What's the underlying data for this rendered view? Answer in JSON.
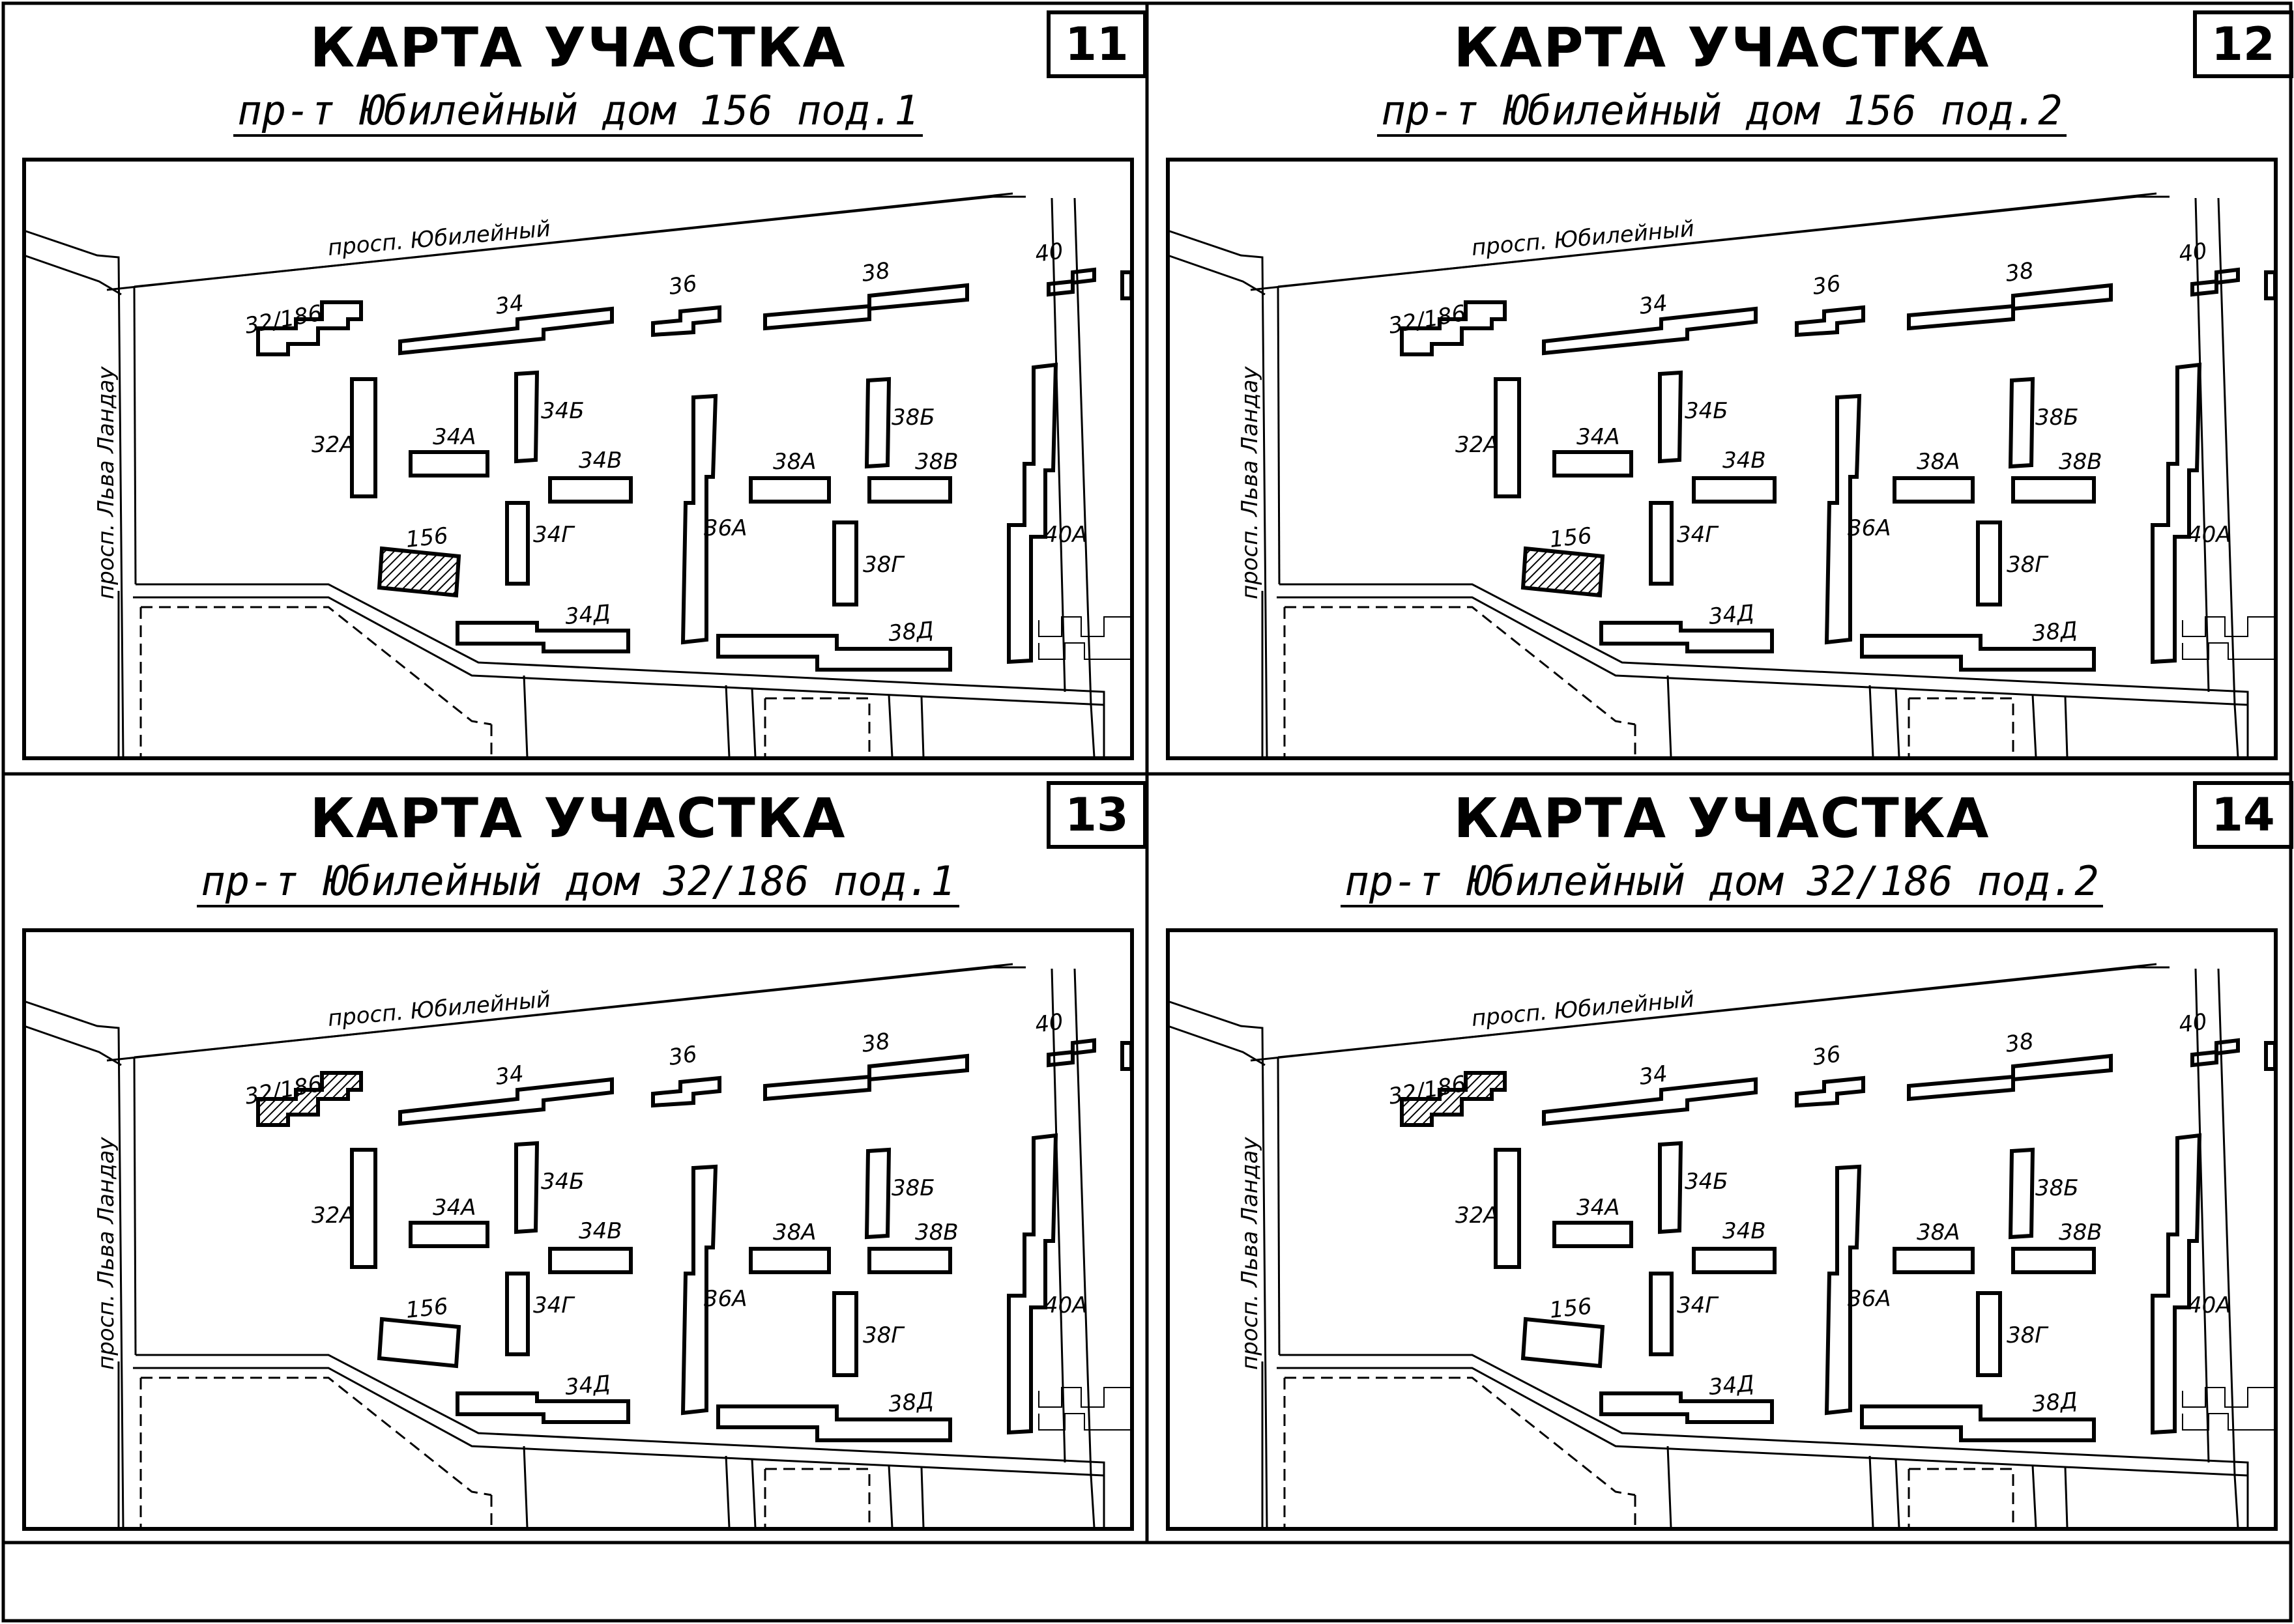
{
  "colors": {
    "ink": "#000000",
    "background": "#ffffff",
    "hatch": "#000000"
  },
  "streets": {
    "jubilee_avenue": "просп. Юбилейный",
    "landau_avenue": "просп. Льва Ландау"
  },
  "building_labels": {
    "b32_186": "32/186",
    "b32a": "32А",
    "b34": "34",
    "b34a": "34А",
    "b34b": "34Б",
    "b34v": "34В",
    "b34g": "34Г",
    "b34d": "34Д",
    "b36": "36",
    "b36a": "36А",
    "b38": "38",
    "b38a": "38А",
    "b38b": "38Б",
    "b38v": "38В",
    "b38g": "38Г",
    "b38d": "38Д",
    "b40": "40",
    "b40a": "40А",
    "b156": "156"
  },
  "panels": [
    {
      "number": "11",
      "title": "КАРТА УЧАСТКА",
      "subtitle": "пр-т Юбилейный дом 156 под.1",
      "highlighted_building": "156"
    },
    {
      "number": "12",
      "title": "КАРТА УЧАСТКА",
      "subtitle": "пр-т Юбилейный дом 156 под.2",
      "highlighted_building": "156"
    },
    {
      "number": "13",
      "title": "КАРТА УЧАСТКА",
      "subtitle": "пр-т Юбилейный дом 32/186 под.1",
      "highlighted_building": "32/186"
    },
    {
      "number": "14",
      "title": "КАРТА УЧАСТКА",
      "subtitle": "пр-т Юбилейный дом 32/186 под.2",
      "highlighted_building": "32/186"
    }
  ]
}
